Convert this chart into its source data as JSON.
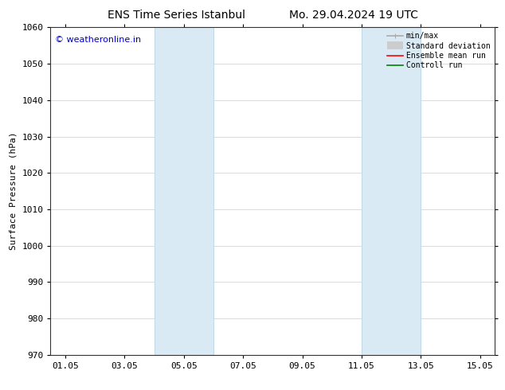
{
  "title_left": "ENS Time Series Istanbul",
  "title_right": "Mo. 29.04.2024 19 UTC",
  "ylabel": "Surface Pressure (hPa)",
  "ylim": [
    970,
    1060
  ],
  "yticks": [
    970,
    980,
    990,
    1000,
    1010,
    1020,
    1030,
    1040,
    1050,
    1060
  ],
  "xtick_labels": [
    "01.05",
    "03.05",
    "05.05",
    "07.05",
    "09.05",
    "11.05",
    "13.05",
    "15.05"
  ],
  "xtick_positions": [
    0,
    2,
    4,
    6,
    8,
    10,
    12,
    14
  ],
  "xlim": [
    -0.5,
    14.5
  ],
  "shaded_bands": [
    {
      "x_start": 3.0,
      "x_end": 5.0
    },
    {
      "x_start": 10.0,
      "x_end": 12.0
    }
  ],
  "shaded_color": "#daeaf5",
  "shaded_edge_color": "#b8d4e8",
  "watermark_text": "© weatheronline.in",
  "watermark_color": "#0000cc",
  "legend_items": [
    {
      "label": "min/max",
      "color": "#aaaaaa",
      "lw": 1.2,
      "type": "line_capped"
    },
    {
      "label": "Standard deviation",
      "color": "#cccccc",
      "lw": 7,
      "type": "thick_line"
    },
    {
      "label": "Ensemble mean run",
      "color": "red",
      "lw": 1.2,
      "type": "line"
    },
    {
      "label": "Controll run",
      "color": "green",
      "lw": 1.2,
      "type": "line"
    }
  ],
  "bg_color": "#ffffff",
  "grid_color": "#cccccc",
  "font_size_title": 10,
  "font_size_legend": 7,
  "font_size_axis": 8,
  "font_size_watermark": 8
}
